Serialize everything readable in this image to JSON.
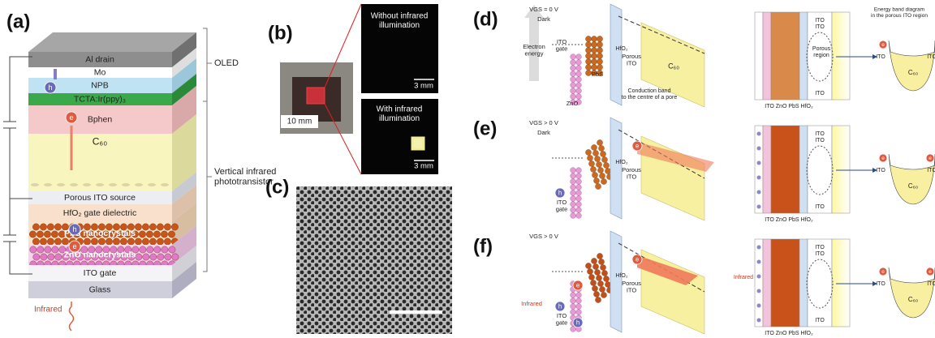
{
  "panel_labels": [
    "(a)",
    "(b)",
    "(c)",
    "(d)",
    "(e)",
    "(f)"
  ],
  "a": {
    "layers": [
      "Al drain",
      "Mo",
      "NPB",
      "TCTA:Ir(ppy)₃",
      "Bphen",
      "C₆₀",
      "Porous ITO source",
      "HfO₂ gate dielectric",
      "PbS nanocrystals",
      "ZnO nanocrystals",
      "ITO gate",
      "Glass"
    ],
    "carriers": [
      "h",
      "e",
      "h",
      "e"
    ],
    "infrared": "Infrared",
    "oled": "OLED",
    "phototransistor": [
      "Vertical infrared",
      "phototransistor"
    ]
  },
  "b": {
    "top": [
      "Without infrared",
      "illumination"
    ],
    "bottom": [
      "With infrared",
      "illumination"
    ],
    "scale_top": "3 mm",
    "scale_bottom": "3 mm",
    "device_scale": "10 mm"
  },
  "d": {
    "axis": [
      "Electron",
      "energy"
    ],
    "vgs": "VGS = 0 V",
    "dark": "Dark",
    "ito_gate": [
      "ITO",
      "gate"
    ],
    "pbs": "PbS",
    "zno": "ZnO",
    "hfo2": "HfO₂",
    "porous": [
      "Porous",
      "ITO"
    ],
    "c60": "C₆₀",
    "conduction": [
      "Conduction band",
      "to the centre of a pore"
    ],
    "stack": "ITO ZnO PbS HfO₂",
    "ito_labels": [
      "ITO",
      "ITO"
    ],
    "porous_region": [
      "Porous",
      "region"
    ],
    "band_title": [
      "Energy band diagram",
      "in the porous ITO region"
    ],
    "band": {
      "e": "e",
      "left": "ITO",
      "c60": "C₆₀",
      "right": "ITO"
    }
  },
  "e": {
    "vgs": "VGS > 0 V",
    "dark": "Dark",
    "h": "h",
    "ito_gate": [
      "ITO",
      "gate"
    ],
    "hfo2": "HfO₂",
    "porous": [
      "Porous",
      "ITO"
    ],
    "mark_e": "e",
    "stack": "ITO ZnO PbS HfO₂",
    "ito_labels": [
      "ITO",
      "ITO"
    ],
    "band": {
      "e": "e",
      "left": "ITO",
      "c60": "C₆₀",
      "right": "ITO",
      "e2": "e"
    }
  },
  "f": {
    "vgs": "VGS > 0 V",
    "infrared": "Infrared",
    "h": "h",
    "h2": "h",
    "mark_e2": "e",
    "ito_gate": [
      "ITO",
      "gate"
    ],
    "hfo2": "HfO₂",
    "porous": [
      "Porous",
      "ITO"
    ],
    "mark_e": "e",
    "infrared2": "Infrared",
    "stack": "ITO ZnO PbS HfO₂",
    "ito_labels": [
      "ITO",
      "ITO"
    ],
    "band": {
      "e": "e",
      "left": "ITO",
      "c60": "C₆₀",
      "right": "ITO",
      "e2": "e"
    }
  }
}
